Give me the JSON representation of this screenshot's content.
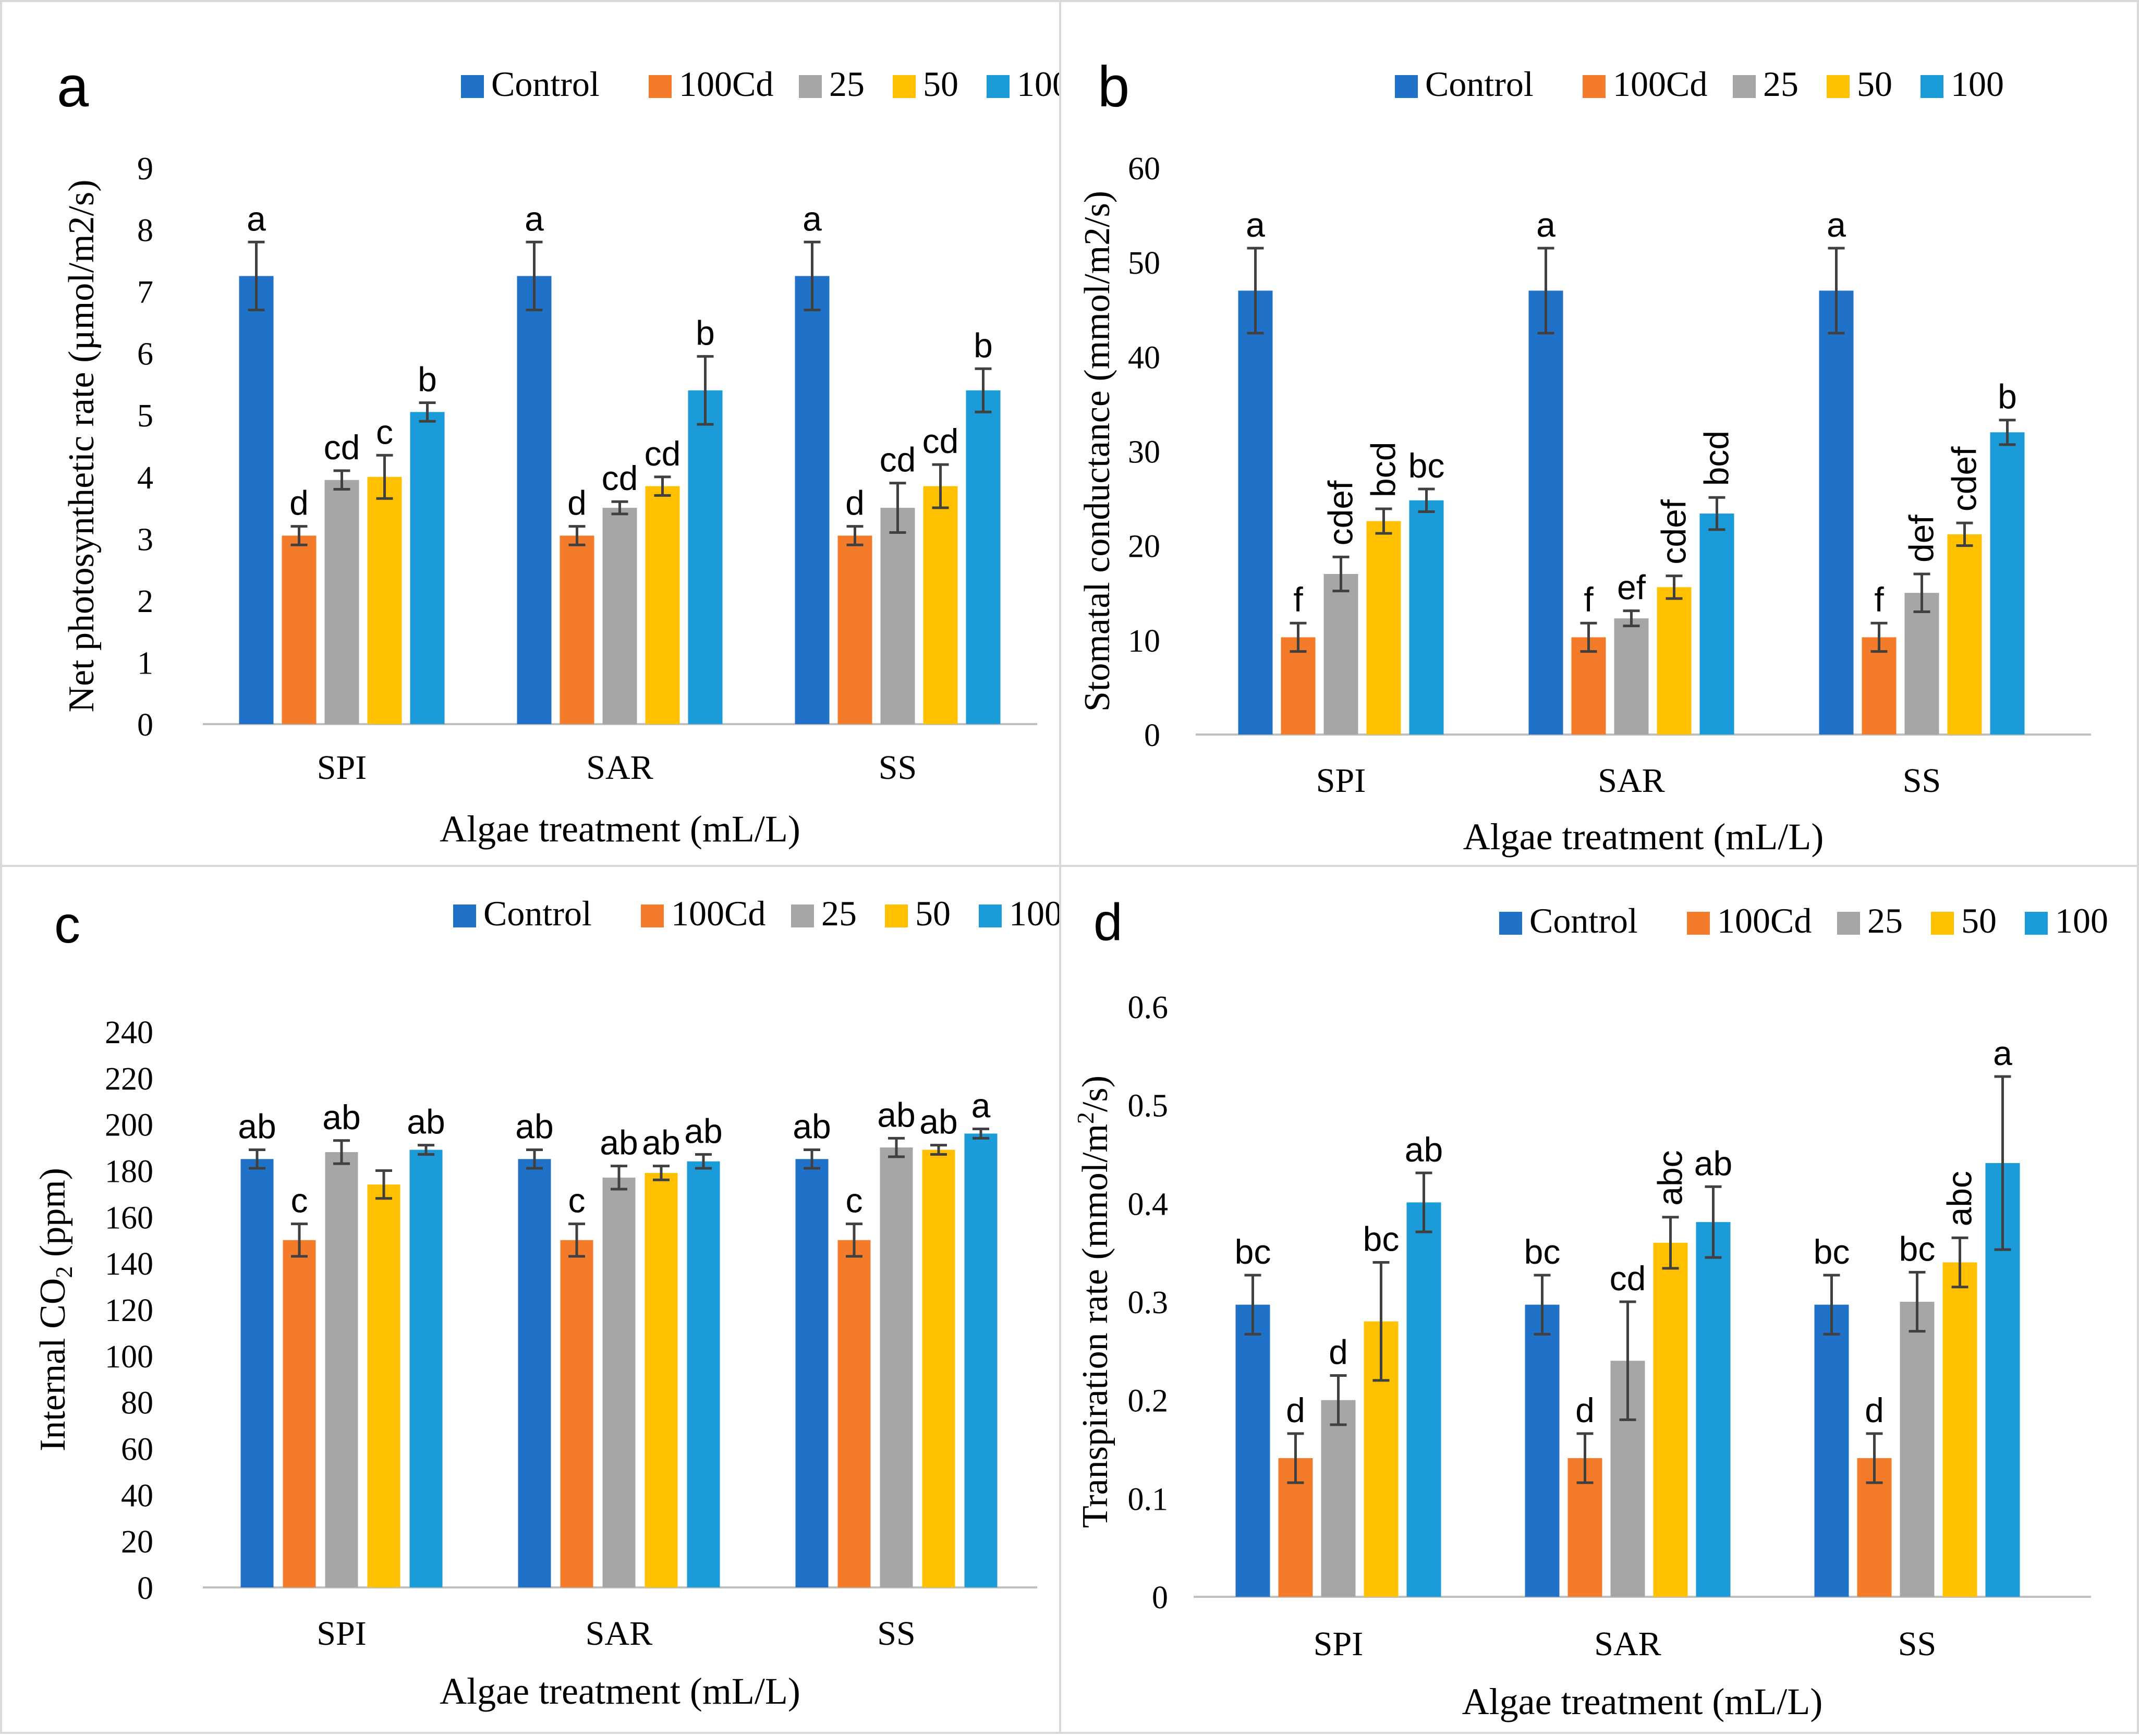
{
  "legend_labels": [
    "Control",
    "100Cd",
    "25",
    "50",
    "100"
  ],
  "colors": {
    "Control": "#1f72c8",
    "100Cd": "#f47b2a",
    "25": "#a6a6a6",
    "50": "#ffc000",
    "100": "#1b9bd7",
    "axis": "#bfbfbf",
    "errorbar": "#404040"
  },
  "chart_data": [
    {
      "panel": "a",
      "type": "bar",
      "categories": [
        "SPI",
        "SAR",
        "SS"
      ],
      "xlabel": "Algae treatment (mL/L)",
      "ylabel": "Net photosynthetic rate (µmol/m2/s)",
      "ylim": [
        0,
        9
      ],
      "yticks": [
        "0",
        "1",
        "2",
        "3",
        "4",
        "5",
        "6",
        "7",
        "8",
        "9"
      ],
      "series": [
        {
          "name": "Control",
          "values": [
            7.25,
            7.25,
            7.25
          ],
          "errors": [
            0.55,
            0.55,
            0.55
          ],
          "letters": [
            "a",
            "a",
            "a"
          ]
        },
        {
          "name": "100Cd",
          "values": [
            3.05,
            3.05,
            3.05
          ],
          "errors": [
            0.15,
            0.15,
            0.15
          ],
          "letters": [
            "d",
            "d",
            "d"
          ]
        },
        {
          "name": "25",
          "values": [
            3.95,
            3.5,
            3.5
          ],
          "errors": [
            0.15,
            0.1,
            0.4
          ],
          "letters": [
            "cd",
            "cd",
            "cd"
          ]
        },
        {
          "name": "50",
          "values": [
            4.0,
            3.85,
            3.85
          ],
          "errors": [
            0.35,
            0.15,
            0.35
          ],
          "letters": [
            "c",
            "cd",
            "cd"
          ]
        },
        {
          "name": "100",
          "values": [
            5.05,
            5.4,
            5.4
          ],
          "errors": [
            0.15,
            0.55,
            0.35
          ],
          "letters": [
            "b",
            "b",
            "b"
          ]
        }
      ]
    },
    {
      "panel": "b",
      "type": "bar",
      "categories": [
        "SPI",
        "SAR",
        "SS"
      ],
      "xlabel": "Algae treatment (mL/L)",
      "ylabel": "Stomatal conductance (mmol/m2/s)",
      "ylim": [
        0,
        60
      ],
      "yticks": [
        "0",
        "10",
        "20",
        "30",
        "40",
        "50",
        "60"
      ],
      "series": [
        {
          "name": "Control",
          "values": [
            47,
            47,
            47
          ],
          "errors": [
            4.5,
            4.5,
            4.5
          ],
          "letters": [
            "a",
            "a",
            "a"
          ]
        },
        {
          "name": "100Cd",
          "values": [
            10.3,
            10.3,
            10.3
          ],
          "errors": [
            1.5,
            1.5,
            1.5
          ],
          "letters": [
            "f",
            "f",
            "f"
          ]
        },
        {
          "name": "25",
          "values": [
            17.0,
            12.3,
            15.0
          ],
          "errors": [
            1.8,
            0.8,
            2.0
          ],
          "letters": [
            "cdef",
            "ef",
            "def"
          ]
        },
        {
          "name": "50",
          "values": [
            22.6,
            15.6,
            21.2
          ],
          "errors": [
            1.3,
            1.2,
            1.2
          ],
          "letters": [
            "bcd",
            "cdef",
            "cdef"
          ]
        },
        {
          "name": "100",
          "values": [
            24.8,
            23.4,
            32.0
          ],
          "errors": [
            1.2,
            1.7,
            1.3
          ],
          "letters": [
            "bc",
            "bcd",
            "b"
          ]
        }
      ]
    },
    {
      "panel": "c",
      "type": "bar",
      "categories": [
        "SPI",
        "SAR",
        "SS"
      ],
      "xlabel": "Algae treatment (mL/L)",
      "ylabel": "Internal CO",
      "ylabel_subscript": "2",
      "ylabel_unit": " (ppm)",
      "ylim": [
        0,
        240
      ],
      "yticks": [
        "0",
        "20",
        "40",
        "60",
        "80",
        "100",
        "120",
        "140",
        "160",
        "180",
        "200",
        "220",
        "240"
      ],
      "series": [
        {
          "name": "Control",
          "values": [
            185,
            185,
            185
          ],
          "errors": [
            4,
            4,
            4
          ],
          "letters": [
            "ab",
            "ab",
            "ab"
          ]
        },
        {
          "name": "100Cd",
          "values": [
            150,
            150,
            150
          ],
          "errors": [
            7,
            7,
            7
          ],
          "letters": [
            "c",
            "c",
            "c"
          ]
        },
        {
          "name": "25",
          "values": [
            188,
            177,
            190
          ],
          "errors": [
            5,
            5,
            4
          ],
          "letters": [
            "ab",
            "ab",
            "ab"
          ]
        },
        {
          "name": "50",
          "values": [
            174,
            179,
            189
          ],
          "errors": [
            6,
            3,
            2
          ],
          "letters": [
            "",
            "ab",
            "ab"
          ]
        },
        {
          "name": "100",
          "values": [
            189,
            184,
            196
          ],
          "errors": [
            2,
            3,
            2
          ],
          "letters": [
            "ab",
            "ab",
            "a"
          ]
        }
      ]
    },
    {
      "panel": "d",
      "type": "bar",
      "categories": [
        "SPI",
        "SAR",
        "SS"
      ],
      "xlabel": "Algae treatment (mL/L)",
      "ylabel": "Transpiration rate (mmol/m",
      "ylabel_superscript": "2",
      "ylabel_unit": "/s)",
      "ylim": [
        0,
        0.6
      ],
      "yticks": [
        "0",
        "0.1",
        "0.2",
        "0.3",
        "0.4",
        "0.5",
        "0.6"
      ],
      "series": [
        {
          "name": "Control",
          "values": [
            0.297,
            0.297,
            0.297
          ],
          "errors": [
            0.03,
            0.03,
            0.03
          ],
          "letters": [
            "bc",
            "bc",
            "bc"
          ]
        },
        {
          "name": "100Cd",
          "values": [
            0.141,
            0.141,
            0.141
          ],
          "errors": [
            0.025,
            0.025,
            0.025
          ],
          "letters": [
            "d",
            "d",
            "d"
          ]
        },
        {
          "name": "25",
          "values": [
            0.2,
            0.24,
            0.3
          ],
          "errors": [
            0.025,
            0.06,
            0.03
          ],
          "letters": [
            "d",
            "cd",
            "bc"
          ]
        },
        {
          "name": "50",
          "values": [
            0.28,
            0.36,
            0.34
          ],
          "errors": [
            0.06,
            0.026,
            0.025
          ],
          "letters": [
            "bc",
            "abc",
            "abc"
          ]
        },
        {
          "name": "100",
          "values": [
            0.401,
            0.381,
            0.441
          ],
          "errors": [
            0.03,
            0.036,
            0.088
          ],
          "letters": [
            "ab",
            "ab",
            "a"
          ]
        }
      ]
    }
  ]
}
